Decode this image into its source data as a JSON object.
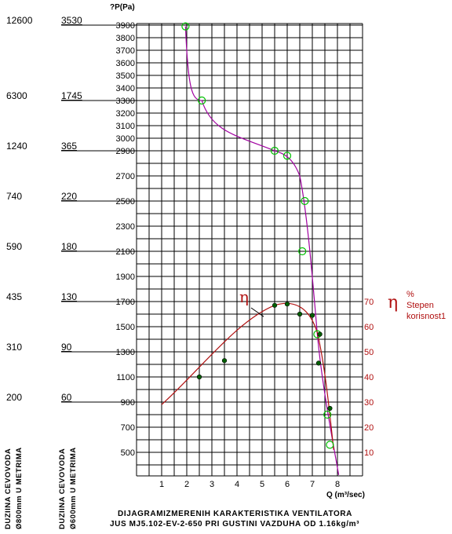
{
  "chart_data": {
    "type": "line",
    "ylabel": "?P(Pa)",
    "xlabel": "Q (m³/sec)",
    "x_ticks": [
      "1",
      "2",
      "3",
      "4",
      "5",
      "6",
      "7",
      "8"
    ],
    "xlim": [
      0,
      9
    ],
    "ylim": [
      300,
      3950
    ],
    "y_ticks": [
      "3900",
      "3800",
      "3700",
      "3600",
      "3500",
      "3400",
      "3300",
      "3200",
      "3100",
      "3000",
      "2900",
      "2700",
      "2500",
      "2300",
      "2100",
      "1900",
      "1700",
      "1500",
      "1300",
      "1100",
      "900",
      "700",
      "500"
    ],
    "eta_ticks": [
      "70",
      "60",
      "50",
      "40",
      "30",
      "20",
      "10"
    ],
    "side_rows": [
      {
        "a": "12600",
        "b": "3530"
      },
      {
        "a": "6300",
        "b": "1745"
      },
      {
        "a": "1240",
        "b": "365"
      },
      {
        "a": "740",
        "b": "220"
      },
      {
        "a": "590",
        "b": "180"
      },
      {
        "a": "435",
        "b": "130"
      },
      {
        "a": "310",
        "b": "90"
      },
      {
        "a": "200",
        "b": "60"
      }
    ],
    "left_vertical_label_1": [
      "DUZIINA CEVOVODA",
      "Ø800mm U METRIMA"
    ],
    "left_vertical_label_2": [
      "DUZIINA CEVOVODA",
      "Ø600mm U METRIMA"
    ],
    "eta_symbol": "η",
    "eta_legend": [
      "%",
      "Stepen",
      "korisnost1"
    ],
    "caption": [
      "DIJAGRAMIZMERENIH KARAKTERISTIKA VENTILATORA",
      "JUS MJ5.102-EV-2-650 PRI GUSTINI VAZDUHA OD 1.16kg/m³"
    ],
    "series": [
      {
        "values_ref": "pressure",
        "color": "#a000a0",
        "points": [
          [
            1.95,
            3890
          ],
          [
            2.6,
            3300
          ],
          [
            5.5,
            2900
          ],
          [
            6.0,
            2860
          ],
          [
            6.7,
            2500
          ],
          [
            6.6,
            2100
          ],
          [
            7.2,
            1440
          ],
          [
            7.6,
            800
          ],
          [
            7.7,
            560
          ]
        ]
      },
      {
        "values_ref": "efficiency",
        "color": "#b01010",
        "points": [
          [
            2.5,
            1100
          ],
          [
            3.5,
            1230
          ],
          [
            5.5,
            1670
          ],
          [
            6.0,
            1680
          ],
          [
            6.5,
            1600
          ],
          [
            7.0,
            1590
          ],
          [
            7.3,
            1440
          ],
          [
            7.25,
            1210
          ],
          [
            7.7,
            850
          ]
        ]
      }
    ],
    "grid": true,
    "marker_colors": {
      "pressure_marker": "#00c000",
      "efficiency_marker": "#006000"
    }
  }
}
